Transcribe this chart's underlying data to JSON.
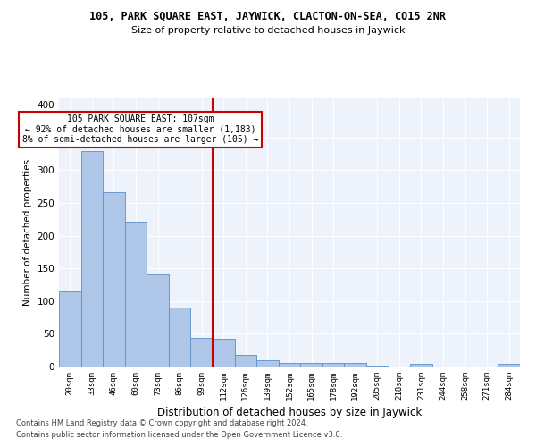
{
  "title1": "105, PARK SQUARE EAST, JAYWICK, CLACTON-ON-SEA, CO15 2NR",
  "title2": "Size of property relative to detached houses in Jaywick",
  "xlabel": "Distribution of detached houses by size in Jaywick",
  "ylabel": "Number of detached properties",
  "categories": [
    "20sqm",
    "33sqm",
    "46sqm",
    "60sqm",
    "73sqm",
    "86sqm",
    "99sqm",
    "112sqm",
    "126sqm",
    "139sqm",
    "152sqm",
    "165sqm",
    "178sqm",
    "192sqm",
    "205sqm",
    "218sqm",
    "231sqm",
    "244sqm",
    "258sqm",
    "271sqm",
    "284sqm"
  ],
  "values": [
    115,
    330,
    267,
    222,
    141,
    90,
    44,
    42,
    18,
    9,
    6,
    6,
    6,
    6,
    2,
    0,
    4,
    0,
    0,
    0,
    4
  ],
  "bar_color": "#aec6e8",
  "bar_edge_color": "#5b8fc9",
  "vline_index": 7,
  "vline_color": "#cc0000",
  "annotation_line1": "105 PARK SQUARE EAST: 107sqm",
  "annotation_line2": "← 92% of detached houses are smaller (1,183)",
  "annotation_line3": "8% of semi-detached houses are larger (105) →",
  "annotation_box_color": "#ffffff",
  "annotation_box_edge": "#cc0000",
  "ylim": [
    0,
    410
  ],
  "yticks": [
    0,
    50,
    100,
    150,
    200,
    250,
    300,
    350,
    400
  ],
  "footer1": "Contains HM Land Registry data © Crown copyright and database right 2024.",
  "footer2": "Contains public sector information licensed under the Open Government Licence v3.0.",
  "bg_color": "#eef2fa",
  "fig_color": "#ffffff"
}
